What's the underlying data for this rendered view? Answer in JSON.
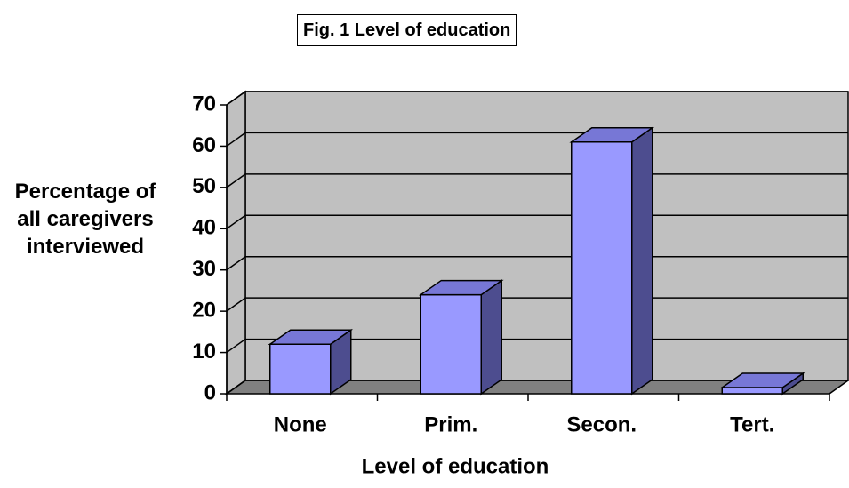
{
  "chart_data": {
    "type": "bar3d",
    "title": "Fig. 1 Level of education",
    "y_label": "Percentage of all caregivers interviewed",
    "x_label": "Level of education",
    "categories": [
      "None",
      "Prim.",
      "Secon.",
      "Tert."
    ],
    "values": [
      12,
      24,
      61,
      1.5
    ],
    "color": "#9999ff",
    "ylim": [
      0,
      70
    ],
    "yticks": [
      0,
      10,
      20,
      30,
      40,
      50,
      60,
      70
    ],
    "grid": true
  }
}
